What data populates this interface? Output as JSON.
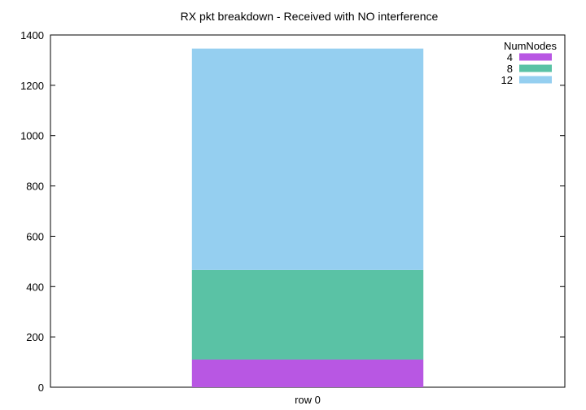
{
  "chart_data": {
    "type": "bar",
    "stacked": true,
    "title": "RX pkt breakdown - Received with NO interference",
    "xlabel": "",
    "ylabel": "",
    "categories": [
      "row 0"
    ],
    "ylim": [
      0,
      1400
    ],
    "yticks": [
      0,
      200,
      400,
      600,
      800,
      1000,
      1200,
      1400
    ],
    "grid": false,
    "legend": {
      "title": "NumNodes",
      "placement": "top-right"
    },
    "series": [
      {
        "name": "4",
        "values": [
          110
        ],
        "color": "#b857e3"
      },
      {
        "name": "8",
        "values": [
          356
        ],
        "color": "#5ac2a5"
      },
      {
        "name": "12",
        "values": [
          880
        ],
        "color": "#95cff0"
      }
    ]
  }
}
